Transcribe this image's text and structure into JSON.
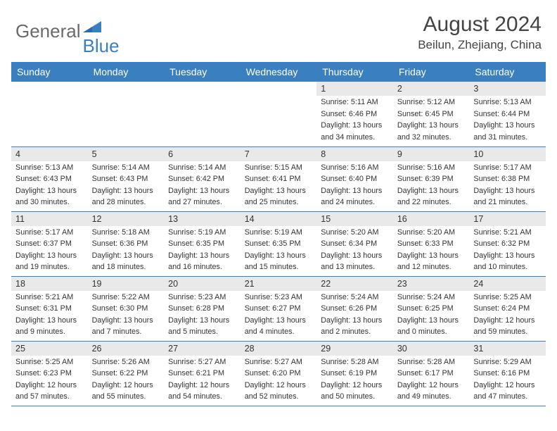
{
  "logo": {
    "part1": "General",
    "part2": "Blue"
  },
  "title": "August 2024",
  "location": "Beilun, Zhejiang, China",
  "colors": {
    "header_bg": "#3a7fc0",
    "header_text": "#ffffff",
    "daynum_bg": "#e9e9e9",
    "border": "#3a7fc0",
    "body_text": "#333333",
    "logo_gray": "#6a6a6a",
    "logo_blue": "#3a7fc0"
  },
  "weekdays": [
    "Sunday",
    "Monday",
    "Tuesday",
    "Wednesday",
    "Thursday",
    "Friday",
    "Saturday"
  ],
  "weeks": [
    [
      {
        "n": "",
        "lines": [
          "",
          "",
          "",
          ""
        ]
      },
      {
        "n": "",
        "lines": [
          "",
          "",
          "",
          ""
        ]
      },
      {
        "n": "",
        "lines": [
          "",
          "",
          "",
          ""
        ]
      },
      {
        "n": "",
        "lines": [
          "",
          "",
          "",
          ""
        ]
      },
      {
        "n": "1",
        "lines": [
          "Sunrise: 5:11 AM",
          "Sunset: 6:46 PM",
          "Daylight: 13 hours",
          "and 34 minutes."
        ]
      },
      {
        "n": "2",
        "lines": [
          "Sunrise: 5:12 AM",
          "Sunset: 6:45 PM",
          "Daylight: 13 hours",
          "and 32 minutes."
        ]
      },
      {
        "n": "3",
        "lines": [
          "Sunrise: 5:13 AM",
          "Sunset: 6:44 PM",
          "Daylight: 13 hours",
          "and 31 minutes."
        ]
      }
    ],
    [
      {
        "n": "4",
        "lines": [
          "Sunrise: 5:13 AM",
          "Sunset: 6:43 PM",
          "Daylight: 13 hours",
          "and 30 minutes."
        ]
      },
      {
        "n": "5",
        "lines": [
          "Sunrise: 5:14 AM",
          "Sunset: 6:43 PM",
          "Daylight: 13 hours",
          "and 28 minutes."
        ]
      },
      {
        "n": "6",
        "lines": [
          "Sunrise: 5:14 AM",
          "Sunset: 6:42 PM",
          "Daylight: 13 hours",
          "and 27 minutes."
        ]
      },
      {
        "n": "7",
        "lines": [
          "Sunrise: 5:15 AM",
          "Sunset: 6:41 PM",
          "Daylight: 13 hours",
          "and 25 minutes."
        ]
      },
      {
        "n": "8",
        "lines": [
          "Sunrise: 5:16 AM",
          "Sunset: 6:40 PM",
          "Daylight: 13 hours",
          "and 24 minutes."
        ]
      },
      {
        "n": "9",
        "lines": [
          "Sunrise: 5:16 AM",
          "Sunset: 6:39 PM",
          "Daylight: 13 hours",
          "and 22 minutes."
        ]
      },
      {
        "n": "10",
        "lines": [
          "Sunrise: 5:17 AM",
          "Sunset: 6:38 PM",
          "Daylight: 13 hours",
          "and 21 minutes."
        ]
      }
    ],
    [
      {
        "n": "11",
        "lines": [
          "Sunrise: 5:17 AM",
          "Sunset: 6:37 PM",
          "Daylight: 13 hours",
          "and 19 minutes."
        ]
      },
      {
        "n": "12",
        "lines": [
          "Sunrise: 5:18 AM",
          "Sunset: 6:36 PM",
          "Daylight: 13 hours",
          "and 18 minutes."
        ]
      },
      {
        "n": "13",
        "lines": [
          "Sunrise: 5:19 AM",
          "Sunset: 6:35 PM",
          "Daylight: 13 hours",
          "and 16 minutes."
        ]
      },
      {
        "n": "14",
        "lines": [
          "Sunrise: 5:19 AM",
          "Sunset: 6:35 PM",
          "Daylight: 13 hours",
          "and 15 minutes."
        ]
      },
      {
        "n": "15",
        "lines": [
          "Sunrise: 5:20 AM",
          "Sunset: 6:34 PM",
          "Daylight: 13 hours",
          "and 13 minutes."
        ]
      },
      {
        "n": "16",
        "lines": [
          "Sunrise: 5:20 AM",
          "Sunset: 6:33 PM",
          "Daylight: 13 hours",
          "and 12 minutes."
        ]
      },
      {
        "n": "17",
        "lines": [
          "Sunrise: 5:21 AM",
          "Sunset: 6:32 PM",
          "Daylight: 13 hours",
          "and 10 minutes."
        ]
      }
    ],
    [
      {
        "n": "18",
        "lines": [
          "Sunrise: 5:21 AM",
          "Sunset: 6:31 PM",
          "Daylight: 13 hours",
          "and 9 minutes."
        ]
      },
      {
        "n": "19",
        "lines": [
          "Sunrise: 5:22 AM",
          "Sunset: 6:30 PM",
          "Daylight: 13 hours",
          "and 7 minutes."
        ]
      },
      {
        "n": "20",
        "lines": [
          "Sunrise: 5:23 AM",
          "Sunset: 6:28 PM",
          "Daylight: 13 hours",
          "and 5 minutes."
        ]
      },
      {
        "n": "21",
        "lines": [
          "Sunrise: 5:23 AM",
          "Sunset: 6:27 PM",
          "Daylight: 13 hours",
          "and 4 minutes."
        ]
      },
      {
        "n": "22",
        "lines": [
          "Sunrise: 5:24 AM",
          "Sunset: 6:26 PM",
          "Daylight: 13 hours",
          "and 2 minutes."
        ]
      },
      {
        "n": "23",
        "lines": [
          "Sunrise: 5:24 AM",
          "Sunset: 6:25 PM",
          "Daylight: 13 hours",
          "and 0 minutes."
        ]
      },
      {
        "n": "24",
        "lines": [
          "Sunrise: 5:25 AM",
          "Sunset: 6:24 PM",
          "Daylight: 12 hours",
          "and 59 minutes."
        ]
      }
    ],
    [
      {
        "n": "25",
        "lines": [
          "Sunrise: 5:25 AM",
          "Sunset: 6:23 PM",
          "Daylight: 12 hours",
          "and 57 minutes."
        ]
      },
      {
        "n": "26",
        "lines": [
          "Sunrise: 5:26 AM",
          "Sunset: 6:22 PM",
          "Daylight: 12 hours",
          "and 55 minutes."
        ]
      },
      {
        "n": "27",
        "lines": [
          "Sunrise: 5:27 AM",
          "Sunset: 6:21 PM",
          "Daylight: 12 hours",
          "and 54 minutes."
        ]
      },
      {
        "n": "28",
        "lines": [
          "Sunrise: 5:27 AM",
          "Sunset: 6:20 PM",
          "Daylight: 12 hours",
          "and 52 minutes."
        ]
      },
      {
        "n": "29",
        "lines": [
          "Sunrise: 5:28 AM",
          "Sunset: 6:19 PM",
          "Daylight: 12 hours",
          "and 50 minutes."
        ]
      },
      {
        "n": "30",
        "lines": [
          "Sunrise: 5:28 AM",
          "Sunset: 6:17 PM",
          "Daylight: 12 hours",
          "and 49 minutes."
        ]
      },
      {
        "n": "31",
        "lines": [
          "Sunrise: 5:29 AM",
          "Sunset: 6:16 PM",
          "Daylight: 12 hours",
          "and 47 minutes."
        ]
      }
    ]
  ]
}
